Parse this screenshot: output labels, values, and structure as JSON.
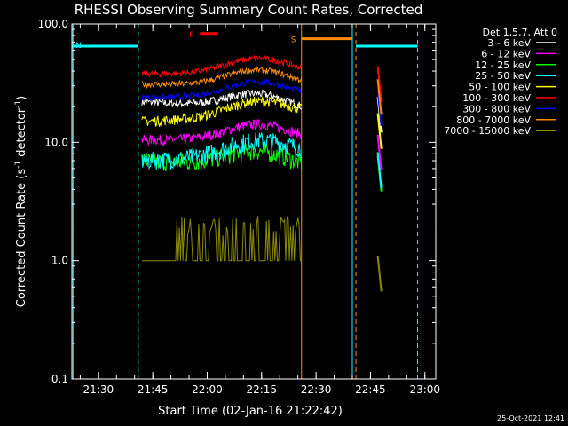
{
  "chart_data": {
    "type": "line",
    "title": "RHESSI Observing Summary Count Rates, Corrected",
    "xlabel": "Start Time (02-Jan-16 21:22:42)",
    "ylabel_main": "Corrected Count Rate (s",
    "ylabel_sup1": "-1",
    "ylabel_mid": " detector",
    "ylabel_sup2": "-1",
    "ylabel_end": ")",
    "y_scale": "log",
    "ylim": [
      0.1,
      100.0
    ],
    "xlim": [
      "21:22:42",
      "23:03:00"
    ],
    "x_ticks": [
      "21:30",
      "21:45",
      "22:00",
      "22:15",
      "22:30",
      "22:45",
      "23:00"
    ],
    "y_ticks": [
      "0.1",
      "1.0",
      "10.0",
      "100.0"
    ],
    "grid": false,
    "legend_position": "top-right",
    "legend_title": "Det 1,5,7, Att 0",
    "timestamp": "25-Oct-2021 12:41",
    "data_start": "21:42",
    "data_end": "22:26",
    "second_start": "22:47",
    "second_end": "22:48",
    "series": [
      {
        "name": "3 - 6 keV",
        "color": "#ffffff",
        "mid_value": 22,
        "start_value": 22,
        "end_value": 18,
        "noise": 0.08
      },
      {
        "name": "6 - 12 keV",
        "color": "#ff00ff",
        "mid_value": 10.5,
        "start_value": 10.5,
        "end_value": 10.5,
        "noise": 0.1
      },
      {
        "name": "12 - 25 keV",
        "color": "#00ff00",
        "mid_value": 7,
        "start_value": 7,
        "end_value": 6,
        "noise": 0.18
      },
      {
        "name": "25 - 50 keV",
        "color": "#00ffff",
        "mid_value": 7.5,
        "start_value": 7,
        "end_value": 8,
        "noise": 0.18
      },
      {
        "name": "50 - 100 keV",
        "color": "#ffff00",
        "mid_value": 16,
        "start_value": 15,
        "end_value": 17,
        "noise": 0.1
      },
      {
        "name": "100 - 300 keV",
        "color": "#ff0000",
        "mid_value": 40,
        "start_value": 38,
        "end_value": 38,
        "noise": 0.06
      },
      {
        "name": "300 - 800 keV",
        "color": "#0000ff",
        "mid_value": 25,
        "start_value": 24,
        "end_value": 24,
        "noise": 0.06
      },
      {
        "name": "800 - 7000 keV",
        "color": "#ff8c00",
        "mid_value": 31,
        "start_value": 31,
        "end_value": 30,
        "noise": 0.06
      },
      {
        "name": "7000 - 15000 keV",
        "color": "#8b8b00",
        "mid_value": 1.0,
        "start_value": 1.0,
        "end_value": 1.0,
        "noise": 0.0
      }
    ],
    "flag_bars": [
      {
        "label": "N",
        "color": "#00ffff",
        "value": 65,
        "start": "21:22:42",
        "end": "21:41"
      },
      {
        "label": "F",
        "color": "#ff0000",
        "value": 83,
        "start": "21:58",
        "end": "22:03"
      },
      {
        "label": "S",
        "color": "#ff8c00",
        "value": 75,
        "start": "22:26",
        "end": "22:40"
      },
      {
        "label": "",
        "color": "#00ffff",
        "value": 65,
        "start": "22:41",
        "end": "22:58"
      }
    ],
    "vertical_lines": [
      {
        "time": "21:23",
        "color": "#00ffff",
        "style": "solid"
      },
      {
        "time": "21:41",
        "color": "#00ffff",
        "style": "dashed"
      },
      {
        "time": "22:26",
        "color": "#ff8c00",
        "style": "solid"
      },
      {
        "time": "22:40",
        "color": "#00ffff",
        "style": "solid"
      },
      {
        "time": "22:41",
        "color": "#ff8c00",
        "style": "dashed"
      },
      {
        "time": "22:58",
        "color": "#00ffff",
        "style": "dashed"
      }
    ]
  }
}
